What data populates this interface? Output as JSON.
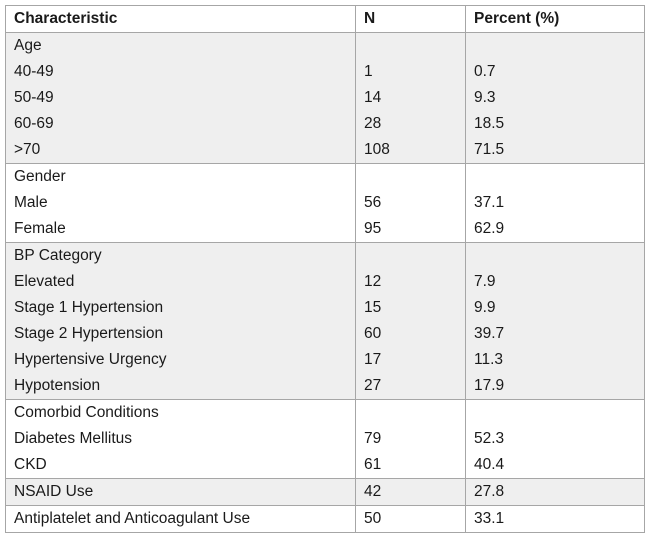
{
  "table": {
    "headers": [
      "Characteristic",
      "N",
      "Percent (%)"
    ],
    "groups": [
      {
        "label": "Age",
        "rows": [
          {
            "label": "40-49",
            "n": "1",
            "pct": "0.7"
          },
          {
            "label": "50-49",
            "n": "14",
            "pct": "9.3"
          },
          {
            "label": "60-69",
            "n": "28",
            "pct": "18.5"
          },
          {
            "label": ">70",
            "n": "108",
            "pct": "71.5"
          }
        ]
      },
      {
        "label": "Gender",
        "rows": [
          {
            "label": "Male",
            "n": "56",
            "pct": "37.1"
          },
          {
            "label": "Female",
            "n": "95",
            "pct": "62.9"
          }
        ]
      },
      {
        "label": "BP Category",
        "rows": [
          {
            "label": "Elevated",
            "n": "12",
            "pct": "7.9"
          },
          {
            "label": "Stage 1 Hypertension",
            "n": "15",
            "pct": "9.9"
          },
          {
            "label": "Stage 2 Hypertension",
            "n": "60",
            "pct": "39.7"
          },
          {
            "label": "Hypertensive Urgency",
            "n": "17",
            "pct": "11.3"
          },
          {
            "label": "Hypotension",
            "n": "27",
            "pct": "17.9"
          }
        ]
      },
      {
        "label": "Comorbid Conditions",
        "rows": [
          {
            "label": "Diabetes Mellitus",
            "n": "79",
            "pct": "52.3"
          },
          {
            "label": "CKD",
            "n": "61",
            "pct": "40.4"
          }
        ]
      }
    ],
    "singles": [
      {
        "label": "NSAID Use",
        "n": "42",
        "pct": "27.8"
      },
      {
        "label": "Antiplatelet and Anticoagulant Use",
        "n": "50",
        "pct": "33.1"
      }
    ]
  },
  "colors": {
    "shaded_row": "#efefef",
    "border": "#a6a6a6"
  }
}
